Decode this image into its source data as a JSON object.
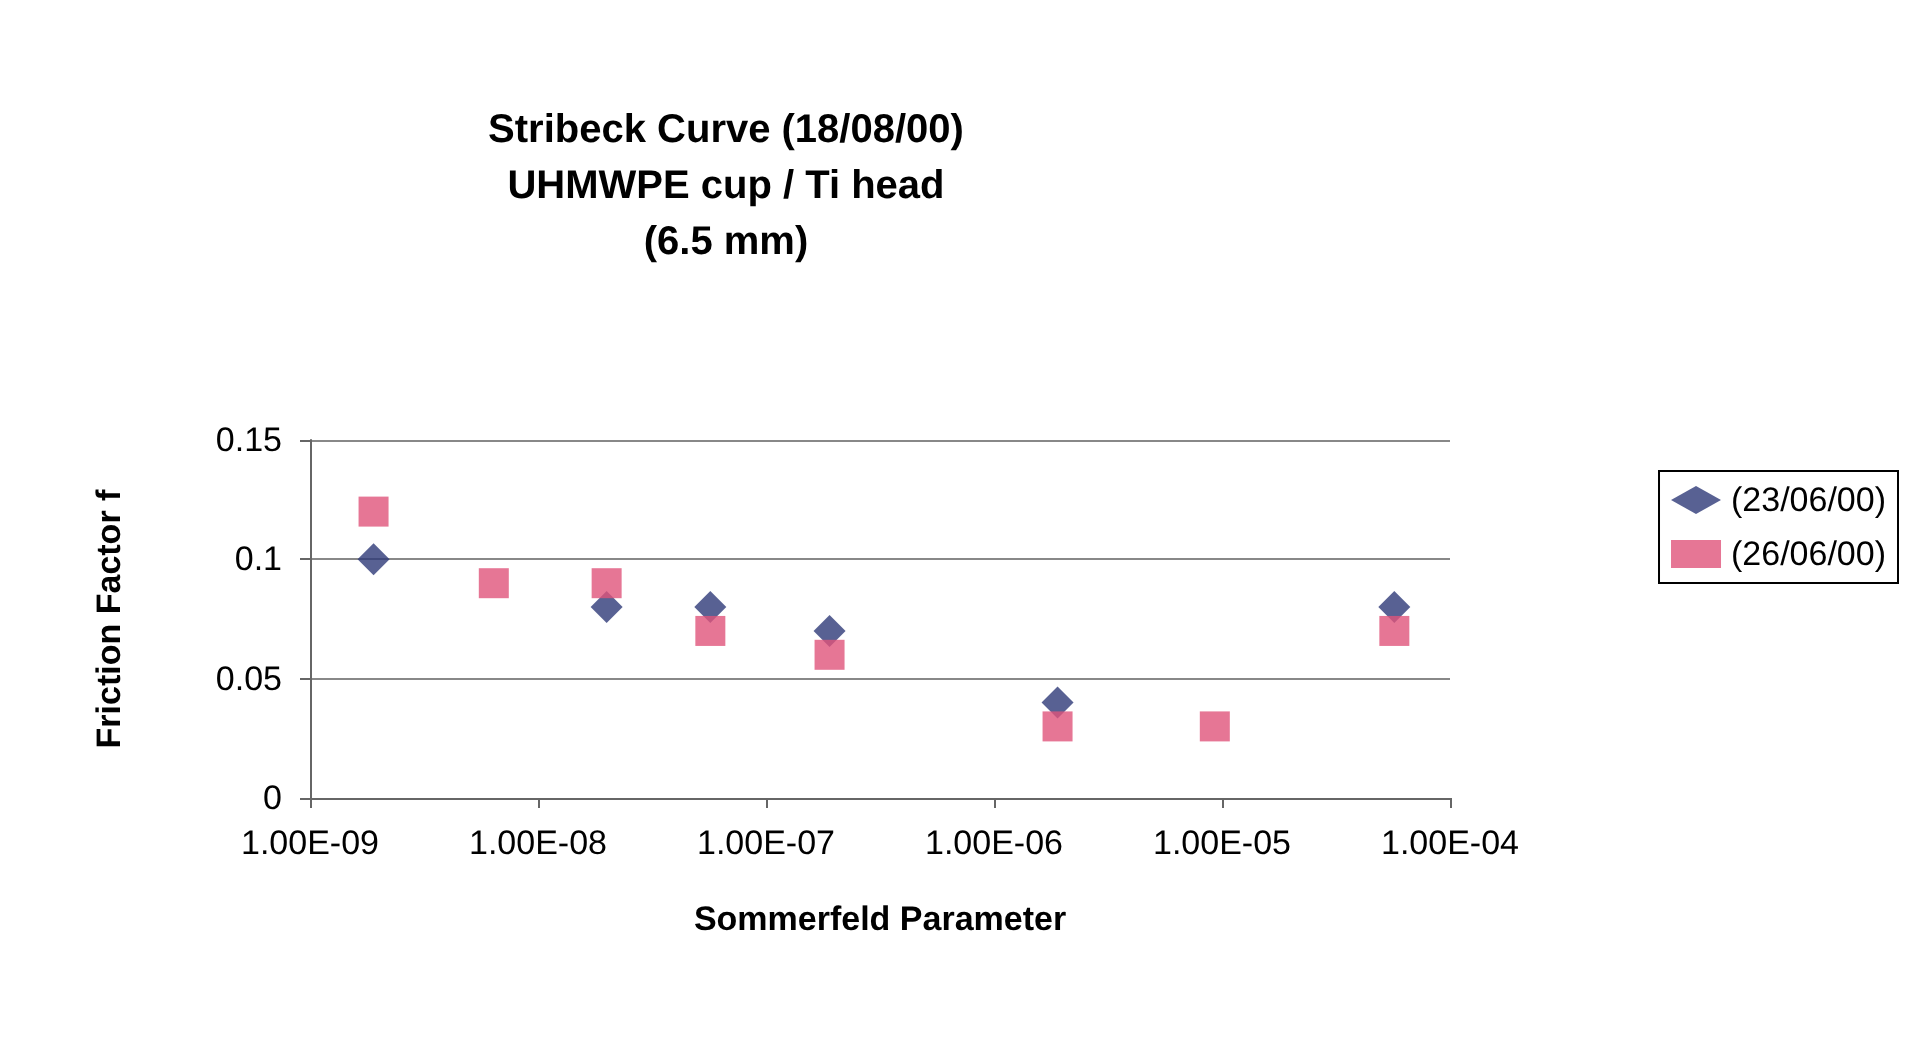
{
  "chart_data": {
    "type": "scatter",
    "title": "Stribeck Curve (18/08/00)\nUHMWPE cup / Ti head\n(6.5 mm)",
    "xlabel": "Sommerfeld Parameter",
    "ylabel": "Friction Factor f",
    "x": [
      1.9e-09,
      6.4e-09,
      2e-08,
      5.7e-08,
      1.9e-07,
      1.9e-06,
      9.3e-06,
      5.7e-05
    ],
    "series": [
      {
        "name": "(23/06/00)",
        "color": "#2e3a78",
        "marker": "diamond",
        "values": [
          0.1,
          null,
          0.08,
          0.08,
          0.07,
          0.04,
          null,
          0.08
        ]
      },
      {
        "name": "(26/06/00)",
        "color": "#e0547a",
        "marker": "square",
        "values": [
          0.12,
          0.09,
          0.09,
          0.07,
          0.06,
          0.03,
          0.03,
          0.07
        ]
      }
    ],
    "log": "x",
    "xlim": [
      1e-09,
      0.0001
    ],
    "xticks": [
      {
        "value": 1e-09,
        "label": "1.00E-09"
      },
      {
        "value": 1e-08,
        "label": "1.00E-08"
      },
      {
        "value": 1e-07,
        "label": "1.00E-07"
      },
      {
        "value": 1e-06,
        "label": "1.00E-06"
      },
      {
        "value": 1e-05,
        "label": "1.00E-05"
      },
      {
        "value": 0.0001,
        "label": "1.00E-04"
      }
    ],
    "ylim": [
      0,
      0.15
    ],
    "yticks": [
      0,
      0.05,
      0.1,
      0.15
    ],
    "grid": "y",
    "legend": "right"
  }
}
